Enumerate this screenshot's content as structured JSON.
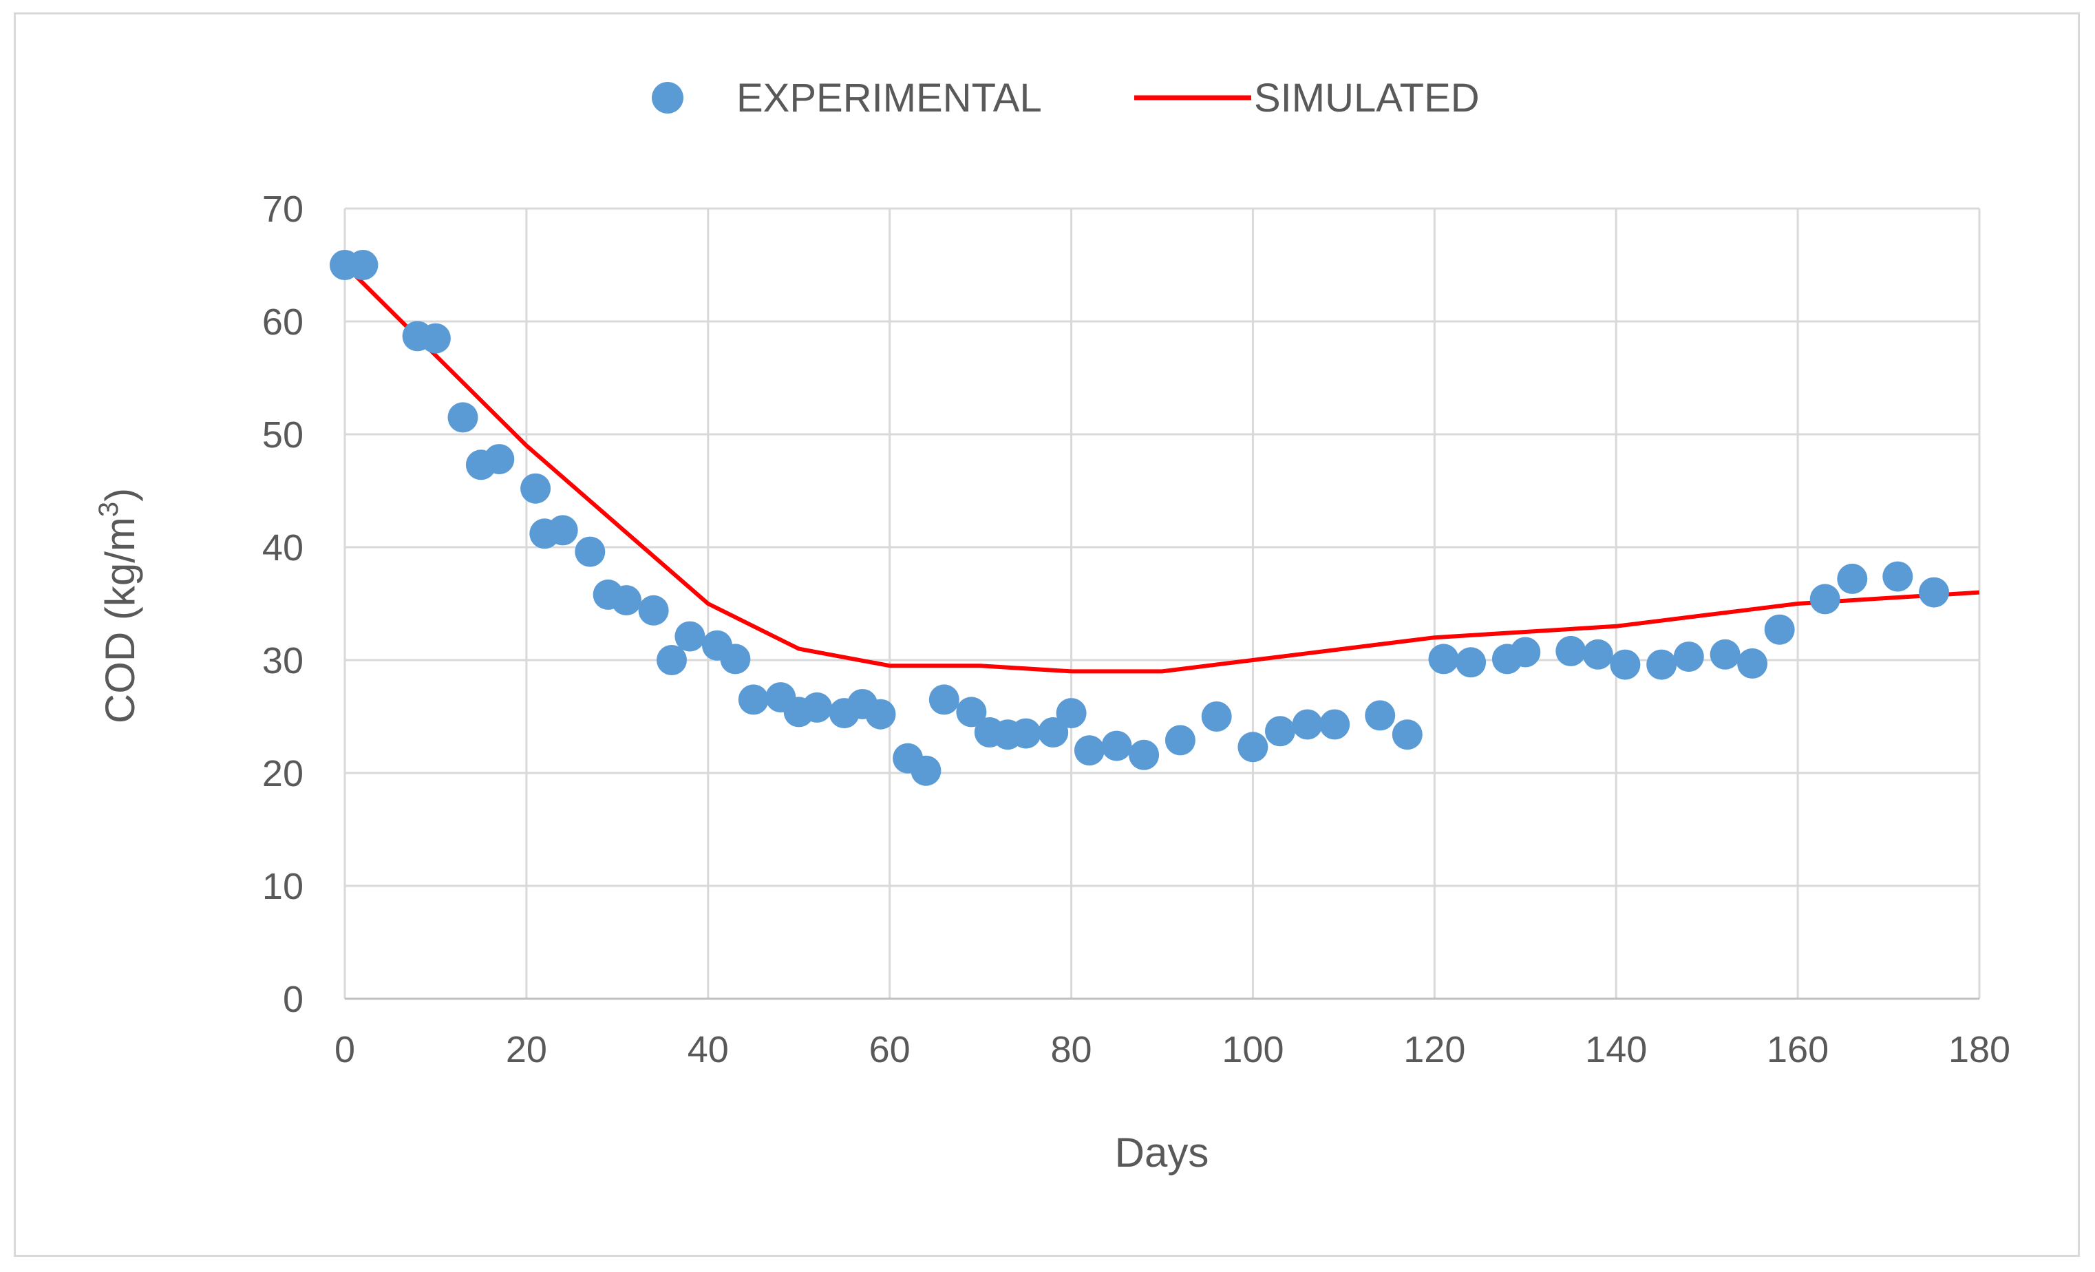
{
  "chart_data": {
    "type": "scatter",
    "title": "",
    "xlabel": "Days",
    "ylabel_main": "COD (kg/m",
    "ylabel_sup": "3",
    "ylabel_close": ")",
    "xlim": [
      0,
      180
    ],
    "ylim": [
      0,
      70
    ],
    "xticks": [
      0,
      20,
      40,
      60,
      80,
      100,
      120,
      140,
      160,
      180
    ],
    "yticks": [
      0,
      10,
      20,
      30,
      40,
      50,
      60,
      70
    ],
    "grid": true,
    "legend_position": "top-center",
    "series": [
      {
        "name": "EXPERIMENTAL",
        "kind": "scatter",
        "color": "#5b9bd5",
        "points": [
          [
            0,
            65
          ],
          [
            2,
            65
          ],
          [
            8,
            58.7
          ],
          [
            10,
            58.5
          ],
          [
            13,
            51.5
          ],
          [
            15,
            47.3
          ],
          [
            17,
            47.8
          ],
          [
            21,
            45.2
          ],
          [
            22,
            41.2
          ],
          [
            24,
            41.5
          ],
          [
            27,
            39.6
          ],
          [
            29,
            35.8
          ],
          [
            31,
            35.3
          ],
          [
            34,
            34.4
          ],
          [
            36,
            30
          ],
          [
            38,
            32.1
          ],
          [
            41,
            31.3
          ],
          [
            43,
            30.1
          ],
          [
            45,
            26.5
          ],
          [
            48,
            26.7
          ],
          [
            50,
            25.4
          ],
          [
            52,
            25.8
          ],
          [
            55,
            25.3
          ],
          [
            57,
            26.1
          ],
          [
            59,
            25.2
          ],
          [
            62,
            21.3
          ],
          [
            64,
            20.2
          ],
          [
            66,
            26.5
          ],
          [
            69,
            25.4
          ],
          [
            71,
            23.6
          ],
          [
            73,
            23.4
          ],
          [
            75,
            23.5
          ],
          [
            78,
            23.6
          ],
          [
            80,
            25.3
          ],
          [
            82,
            22
          ],
          [
            85,
            22.4
          ],
          [
            88,
            21.6
          ],
          [
            92,
            22.9
          ],
          [
            96,
            25
          ],
          [
            100,
            22.3
          ],
          [
            103,
            23.7
          ],
          [
            106,
            24.3
          ],
          [
            109,
            24.3
          ],
          [
            114,
            25.1
          ],
          [
            117,
            23.4
          ],
          [
            121,
            30.1
          ],
          [
            124,
            29.8
          ],
          [
            128,
            30.1
          ],
          [
            130,
            30.7
          ],
          [
            135,
            30.8
          ],
          [
            138,
            30.5
          ],
          [
            141,
            29.6
          ],
          [
            145,
            29.6
          ],
          [
            148,
            30.3
          ],
          [
            152,
            30.5
          ],
          [
            155,
            29.7
          ],
          [
            158,
            32.7
          ],
          [
            163,
            35.4
          ],
          [
            166,
            37.2
          ],
          [
            171,
            37.4
          ],
          [
            175,
            36
          ]
        ]
      },
      {
        "name": "SIMULATED",
        "kind": "line",
        "color": "#ff0000",
        "points": [
          [
            0,
            65
          ],
          [
            10,
            57
          ],
          [
            20,
            49
          ],
          [
            30,
            42
          ],
          [
            40,
            35
          ],
          [
            50,
            31
          ],
          [
            60,
            29.5
          ],
          [
            70,
            29.5
          ],
          [
            80,
            29
          ],
          [
            90,
            29
          ],
          [
            100,
            30
          ],
          [
            110,
            31
          ],
          [
            120,
            32
          ],
          [
            130,
            32.5
          ],
          [
            140,
            33
          ],
          [
            150,
            34
          ],
          [
            160,
            35
          ],
          [
            170,
            35.5
          ],
          [
            180,
            36
          ]
        ]
      }
    ]
  }
}
